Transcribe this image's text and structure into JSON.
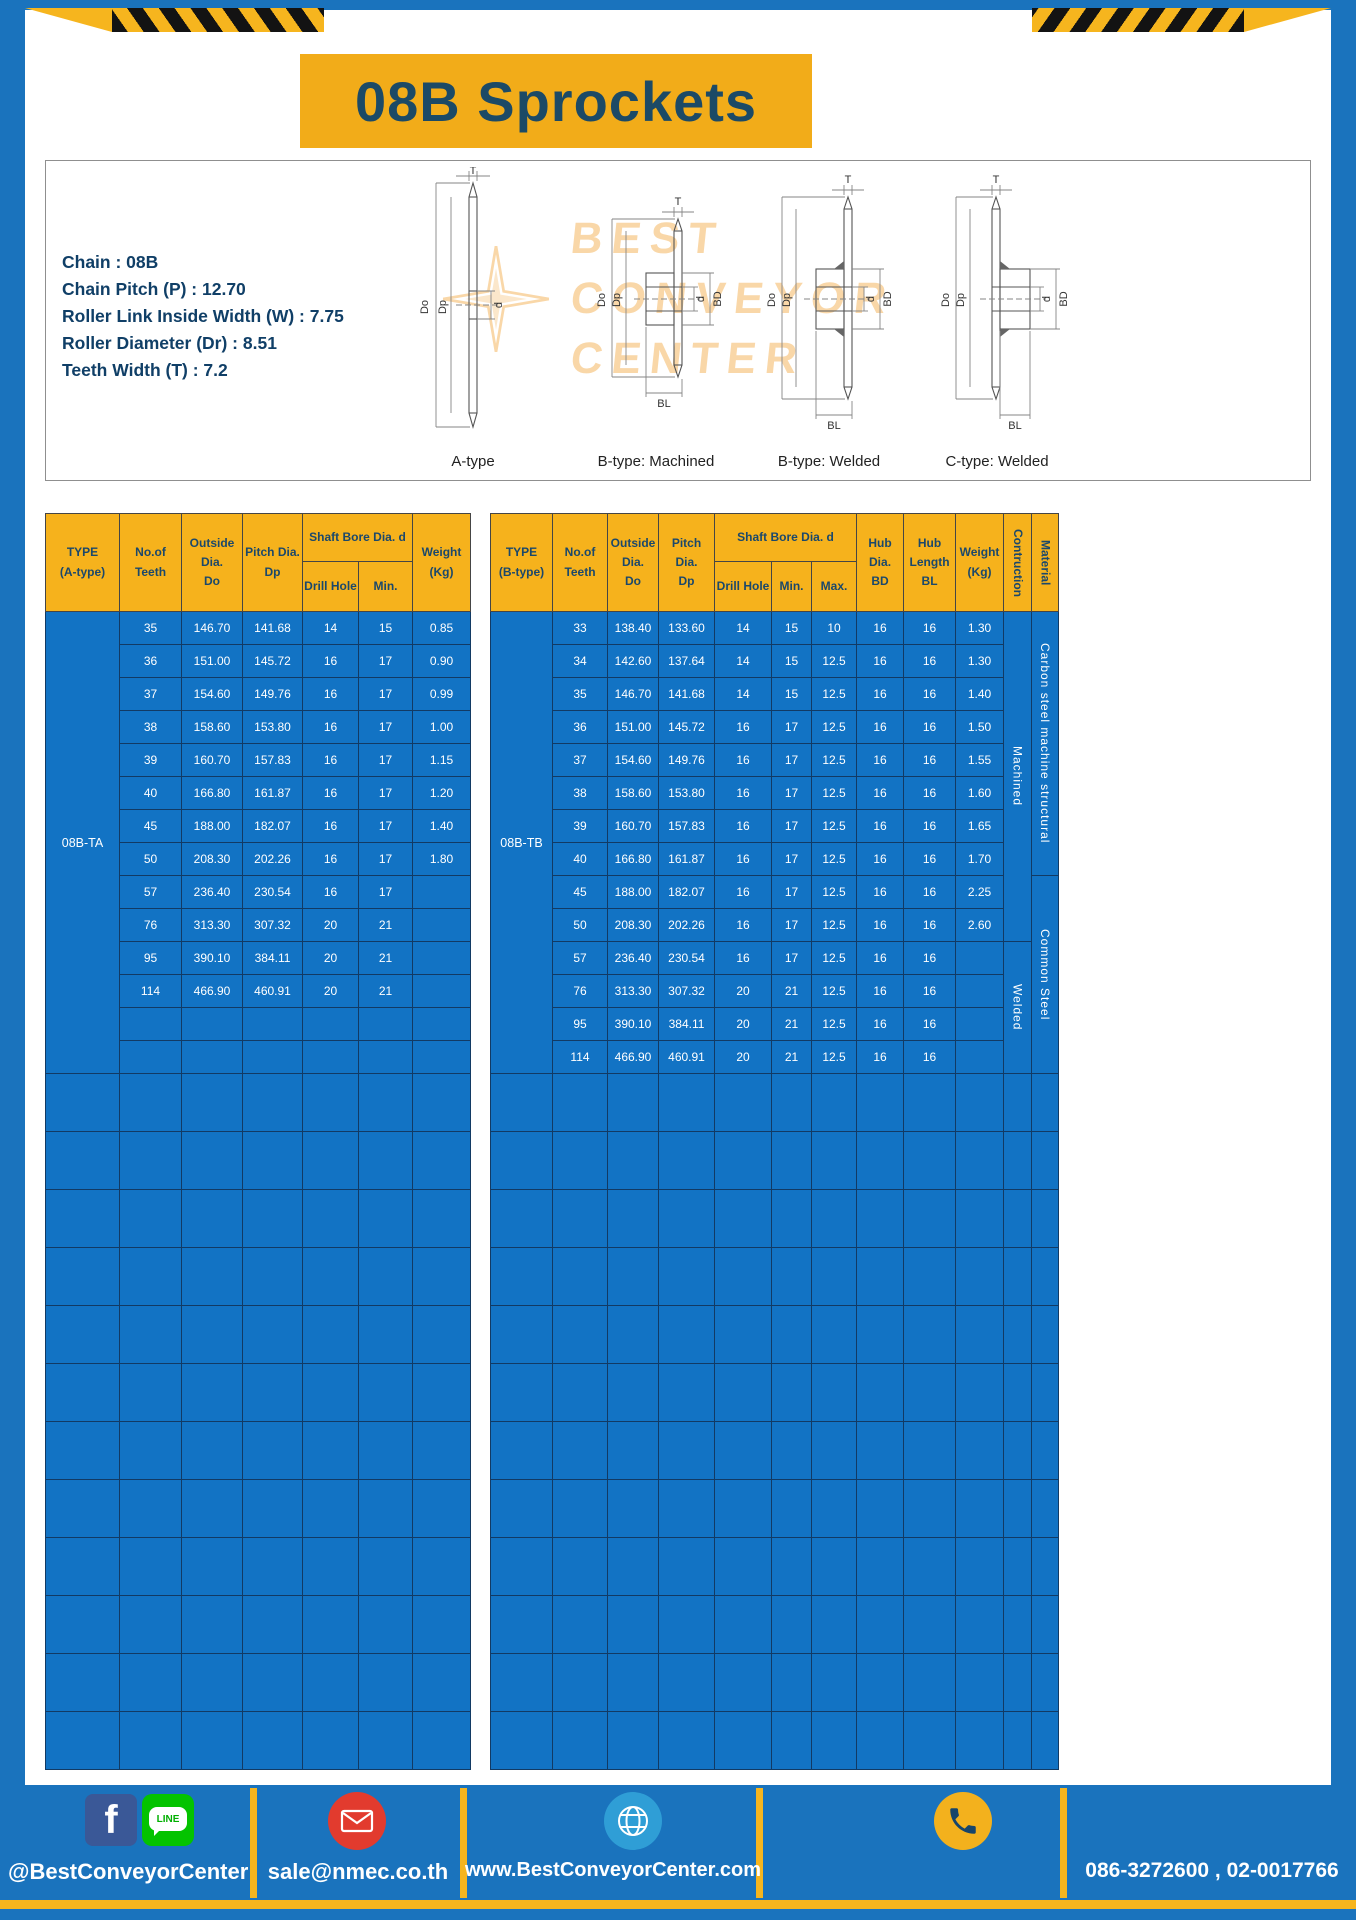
{
  "title": "08B Sprockets",
  "specs": [
    "Chain : 08B",
    "Chain Pitch (P) : 12.70",
    "Roller Link Inside Width (W) : 7.75",
    "Roller Diameter (Dr) : 8.51",
    "Teeth Width (T) : 7.2"
  ],
  "watermark": {
    "lines": [
      "BEST",
      "CONVEYOR",
      "CENTER"
    ]
  },
  "drawings": {
    "labels": [
      "A-type",
      "B-type: Machined",
      "B-type: Welded",
      "C-type: Welded"
    ],
    "dims": {
      "t": "T",
      "do": "Do",
      "dp": "Dp",
      "d": "d",
      "bd": "BD",
      "bl": "BL"
    }
  },
  "tableA": {
    "headers": {
      "type": "TYPE\n(A-type)",
      "teeth": "No.of\nTeeth",
      "outside": "Outside\nDia.\nDo",
      "pitch": "Pitch Dia.\nDp",
      "shaft": "Shaft Bore Dia. d",
      "drill": "Drill Hole",
      "min": "Min.",
      "weight": "Weight\n(Kg)"
    },
    "type_value": "08B-TA",
    "rows": [
      [
        "35",
        "146.70",
        "141.68",
        "14",
        "15",
        "0.85"
      ],
      [
        "36",
        "151.00",
        "145.72",
        "16",
        "17",
        "0.90"
      ],
      [
        "37",
        "154.60",
        "149.76",
        "16",
        "17",
        "0.99"
      ],
      [
        "38",
        "158.60",
        "153.80",
        "16",
        "17",
        "1.00"
      ],
      [
        "39",
        "160.70",
        "157.83",
        "16",
        "17",
        "1.15"
      ],
      [
        "40",
        "166.80",
        "161.87",
        "16",
        "17",
        "1.20"
      ],
      [
        "45",
        "188.00",
        "182.07",
        "16",
        "17",
        "1.40"
      ],
      [
        "50",
        "208.30",
        "202.26",
        "16",
        "17",
        "1.80"
      ],
      [
        "57",
        "236.40",
        "230.54",
        "16",
        "17",
        ""
      ],
      [
        "76",
        "313.30",
        "307.32",
        "20",
        "21",
        ""
      ],
      [
        "95",
        "390.10",
        "384.11",
        "20",
        "21",
        ""
      ],
      [
        "114",
        "466.90",
        "460.91",
        "20",
        "21",
        ""
      ],
      [
        "",
        "",
        "",
        "",
        "",
        ""
      ],
      [
        "",
        "",
        "",
        "",
        "",
        ""
      ]
    ],
    "empty_rows": 12
  },
  "tableB": {
    "headers": {
      "type": "TYPE\n(B-type)",
      "teeth": "No.of\nTeeth",
      "outside": "Outside\nDia.\nDo",
      "pitch": "Pitch Dia.\nDp",
      "shaft": "Shaft Bore Dia. d",
      "drill": "Drill Hole",
      "min": "Min.",
      "max": "Max.",
      "bd": "Hub Dia.\nBD",
      "bl": "Hub\nLength\nBL",
      "weight": "Weight\n(Kg)",
      "construction": "Contruction",
      "material": "Material"
    },
    "type_value": "08B-TB",
    "rows": [
      [
        "33",
        "138.40",
        "133.60",
        "14",
        "15",
        "10",
        "16",
        "16",
        "1.30"
      ],
      [
        "34",
        "142.60",
        "137.64",
        "14",
        "15",
        "12.5",
        "16",
        "16",
        "1.30"
      ],
      [
        "35",
        "146.70",
        "141.68",
        "14",
        "15",
        "12.5",
        "16",
        "16",
        "1.40"
      ],
      [
        "36",
        "151.00",
        "145.72",
        "16",
        "17",
        "12.5",
        "16",
        "16",
        "1.50"
      ],
      [
        "37",
        "154.60",
        "149.76",
        "16",
        "17",
        "12.5",
        "16",
        "16",
        "1.55"
      ],
      [
        "38",
        "158.60",
        "153.80",
        "16",
        "17",
        "12.5",
        "16",
        "16",
        "1.60"
      ],
      [
        "39",
        "160.70",
        "157.83",
        "16",
        "17",
        "12.5",
        "16",
        "16",
        "1.65"
      ],
      [
        "40",
        "166.80",
        "161.87",
        "16",
        "17",
        "12.5",
        "16",
        "16",
        "1.70"
      ],
      [
        "45",
        "188.00",
        "182.07",
        "16",
        "17",
        "12.5",
        "16",
        "16",
        "2.25"
      ],
      [
        "50",
        "208.30",
        "202.26",
        "16",
        "17",
        "12.5",
        "16",
        "16",
        "2.60"
      ],
      [
        "57",
        "236.40",
        "230.54",
        "16",
        "17",
        "12.5",
        "16",
        "16",
        ""
      ],
      [
        "76",
        "313.30",
        "307.32",
        "20",
        "21",
        "12.5",
        "16",
        "16",
        ""
      ],
      [
        "95",
        "390.10",
        "384.11",
        "20",
        "21",
        "12.5",
        "16",
        "16",
        ""
      ],
      [
        "114",
        "466.90",
        "460.91",
        "20",
        "21",
        "12.5",
        "16",
        "16",
        ""
      ]
    ],
    "construction": [
      {
        "label": "Machined",
        "span": 10
      },
      {
        "label": "Welded",
        "span": 4
      }
    ],
    "material": [
      {
        "label": "Carbon steel machine structural",
        "span": 8
      },
      {
        "label": "Common Steel",
        "span": 6
      }
    ],
    "empty_rows": 12
  },
  "footer": {
    "facebook_letter": "f",
    "line_label": "LINE",
    "social_text": "@BestConveyorCenter",
    "email": "sale@nmec.co.th",
    "website": "www.BestConveyorCenter.com",
    "phone": "086-3272600 , 02-0017766"
  }
}
